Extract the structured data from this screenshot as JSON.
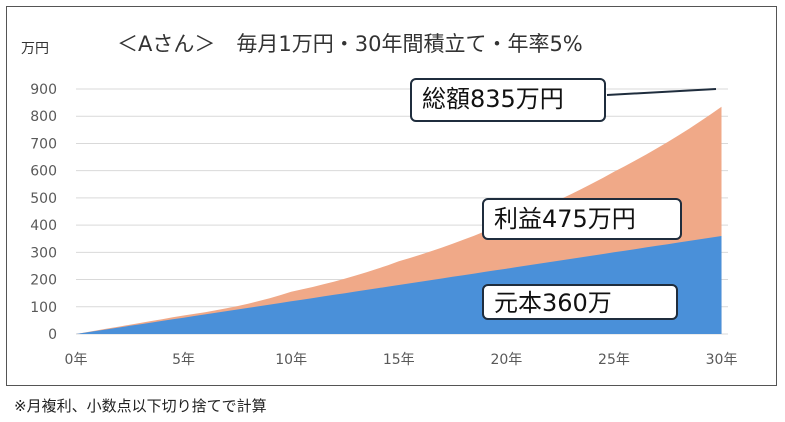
{
  "chart_data": {
    "type": "area",
    "title": "＜Aさん＞　毎月1万円・30年間積立て・年率5%",
    "ylabel": "万円",
    "xlabel": "",
    "x_ticks": [
      "0年",
      "5年",
      "10年",
      "15年",
      "20年",
      "25年",
      "30年"
    ],
    "y_ticks": [
      "0",
      "100",
      "200",
      "300",
      "400",
      "500",
      "600",
      "700",
      "800",
      "900"
    ],
    "xlim": [
      0,
      30
    ],
    "ylim": [
      0,
      900
    ],
    "grid": true,
    "stacked": true,
    "x": [
      0,
      5,
      10,
      15,
      20,
      25,
      30
    ],
    "series": [
      {
        "name": "元本",
        "values": [
          0,
          60,
          120,
          180,
          240,
          300,
          360
        ],
        "color": "#4a90d9"
      },
      {
        "name": "利益",
        "values": [
          0,
          8,
          35,
          87,
          171,
          296,
          475
        ],
        "color": "#f0a988"
      }
    ],
    "total_values": [
      0,
      68,
      155,
      267,
      411,
      596,
      835
    ],
    "annotations": [
      {
        "name": "total",
        "text": "総額835万円"
      },
      {
        "name": "profit",
        "text": "利益475万円"
      },
      {
        "name": "principal",
        "text": "元本360万"
      }
    ]
  },
  "footnote": "※月複利、小数点以下切り捨てで計算",
  "colors": {
    "grid": "#d9d9d9",
    "axis_text": "#595959",
    "frame": "#555555",
    "callout_border": "#1f2d3d"
  }
}
